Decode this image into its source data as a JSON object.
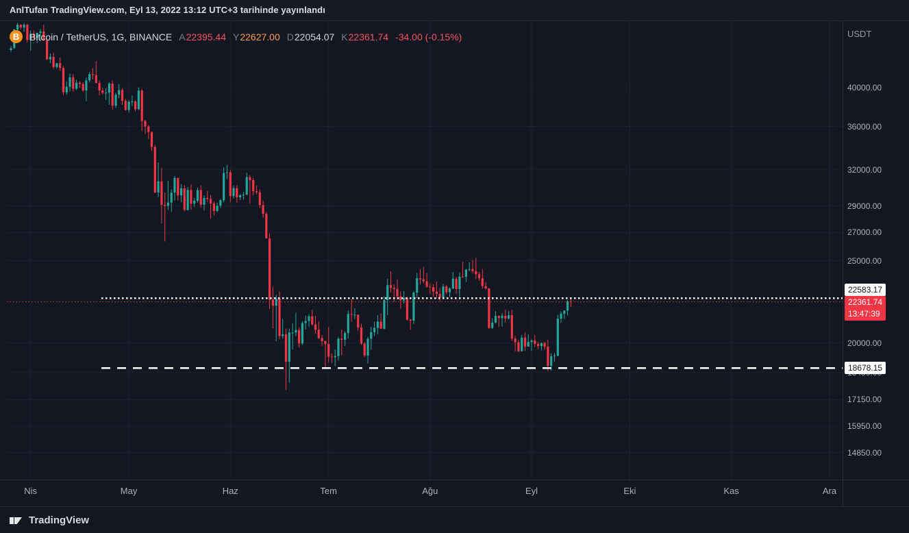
{
  "header": {
    "text": "AnlTufan TradingView.com, Eyl 13, 2022 13:12 UTC+3 tarihinde yayınlandı"
  },
  "legend": {
    "symbol": "Bitcoin / TetherUS, 1G, BINANCE",
    "ohlc": [
      {
        "label": "A",
        "value": "22395.44",
        "color": "#f7525f"
      },
      {
        "label": "Y",
        "value": "22627.00",
        "color": "#ff9850"
      },
      {
        "label": "D",
        "value": "22054.07",
        "color": "#d1d4dc"
      },
      {
        "label": "K",
        "value": "22361.74",
        "color": "#f7525f"
      }
    ],
    "change": {
      "text": "-34.00 (-0.15%)",
      "color": "#f7525f"
    }
  },
  "price_axis": {
    "currency": "USDT",
    "ticks": [
      "40000.00",
      "36000.00",
      "32000.00",
      "29000.00",
      "27000.00",
      "25000.00",
      "20000.00",
      "18450.00",
      "17150.00",
      "15950.00",
      "14850.00"
    ]
  },
  "time_axis": {
    "months": [
      {
        "label": "Nis",
        "bar_index": 6
      },
      {
        "label": "May",
        "bar_index": 36
      },
      {
        "label": "Haz",
        "bar_index": 67
      },
      {
        "label": "Tem",
        "bar_index": 97
      },
      {
        "label": "Ağu",
        "bar_index": 128
      },
      {
        "label": "Eyl",
        "bar_index": 159
      },
      {
        "label": "Eki",
        "bar_index": 189
      },
      {
        "label": "Kas",
        "bar_index": 220
      },
      {
        "label": "Ara",
        "bar_index": 250
      }
    ]
  },
  "footer": {
    "brand": "TradingView"
  },
  "chart_data": {
    "type": "candlestick",
    "symbol": "BTCUSDT",
    "exchange": "BINANCE",
    "interval": "1G",
    "scale": "log",
    "price_range": [
      13800,
      48000
    ],
    "start_date": "2022-03-26",
    "end_date": "2022-09-13",
    "up_color": "#26a69a",
    "down_color": "#f23645",
    "levels": [
      {
        "price": 22583.17,
        "label": "22583.17",
        "style": "white-box",
        "line": "dotted",
        "color": "#ffffff"
      },
      {
        "price": 22361.74,
        "label": "22361.74",
        "style": "red-box",
        "line": "price-dotted",
        "color": "#f23645",
        "countdown": "13:47:39"
      },
      {
        "price": 18678.15,
        "label": "18678.15",
        "style": "white-box",
        "line": "dashed",
        "color": "#ffffff"
      }
    ],
    "candles": [
      [
        44310,
        44800,
        44080,
        44540
      ],
      [
        44540,
        46950,
        44440,
        46850
      ],
      [
        46850,
        47700,
        46660,
        47470
      ],
      [
        47470,
        47500,
        46850,
        47100
      ],
      [
        47100,
        47680,
        46550,
        47460
      ],
      [
        47460,
        47600,
        45200,
        45540
      ],
      [
        45540,
        46720,
        44220,
        46300
      ],
      [
        46300,
        46740,
        45620,
        45800
      ],
      [
        45800,
        46460,
        45150,
        46400
      ],
      [
        46400,
        46890,
        45390,
        46600
      ],
      [
        46600,
        47450,
        45400,
        45500
      ],
      [
        45500,
        45510,
        43120,
        43200
      ],
      [
        43200,
        43900,
        42730,
        43500
      ],
      [
        43500,
        43970,
        42110,
        42300
      ],
      [
        42300,
        42800,
        42120,
        42750
      ],
      [
        42750,
        43420,
        41870,
        42200
      ],
      [
        42200,
        42420,
        39200,
        39500
      ],
      [
        39500,
        40700,
        39250,
        40100
      ],
      [
        40100,
        41560,
        39590,
        41150
      ],
      [
        41150,
        41500,
        39570,
        39900
      ],
      [
        39900,
        40870,
        39770,
        40550
      ],
      [
        40550,
        40700,
        40010,
        40400
      ],
      [
        40400,
        40600,
        39550,
        39700
      ],
      [
        39700,
        41120,
        38550,
        40800
      ],
      [
        40800,
        41760,
        40570,
        41500
      ],
      [
        41500,
        42200,
        40900,
        41400
      ],
      [
        41400,
        42980,
        40800,
        40500
      ],
      [
        40500,
        40800,
        39200,
        39700
      ],
      [
        39700,
        39980,
        39280,
        39450
      ],
      [
        39450,
        39940,
        38700,
        39460
      ],
      [
        39460,
        40600,
        38200,
        40450
      ],
      [
        40450,
        40800,
        37700,
        38100
      ],
      [
        38100,
        39450,
        37880,
        39250
      ],
      [
        39250,
        40400,
        38880,
        39750
      ],
      [
        39750,
        39920,
        38180,
        38600
      ],
      [
        38600,
        38790,
        37580,
        37650
      ],
      [
        37650,
        38670,
        37400,
        38500
      ],
      [
        38500,
        39170,
        38050,
        38530
      ],
      [
        38530,
        38640,
        37500,
        37730
      ],
      [
        37730,
        40020,
        37650,
        39690
      ],
      [
        39690,
        39840,
        35550,
        36550
      ],
      [
        36550,
        36650,
        35250,
        36000
      ],
      [
        36000,
        36130,
        34780,
        35470
      ],
      [
        35470,
        35510,
        33700,
        34050
      ],
      [
        34050,
        34240,
        30030,
        30100
      ],
      [
        30100,
        32650,
        29730,
        31020
      ],
      [
        31020,
        32160,
        27670,
        29100
      ],
      [
        29100,
        30100,
        26350,
        29020
      ],
      [
        29020,
        31080,
        28700,
        29280
      ],
      [
        29280,
        30340,
        28550,
        30080
      ],
      [
        30080,
        31460,
        29450,
        31300
      ],
      [
        31300,
        31330,
        29450,
        29850
      ],
      [
        29850,
        30790,
        29300,
        30440
      ],
      [
        30440,
        30710,
        28600,
        28700
      ],
      [
        28700,
        30550,
        28650,
        30300
      ],
      [
        30300,
        30780,
        28720,
        29200
      ],
      [
        29200,
        29650,
        28940,
        29430
      ],
      [
        29430,
        30490,
        29280,
        30290
      ],
      [
        30290,
        30680,
        28880,
        29110
      ],
      [
        29110,
        29870,
        28660,
        29650
      ],
      [
        29650,
        30230,
        29310,
        29570
      ],
      [
        29570,
        29890,
        28020,
        29200
      ],
      [
        29200,
        29380,
        28270,
        28620
      ],
      [
        28620,
        29270,
        28550,
        29030
      ],
      [
        29030,
        29560,
        28840,
        29470
      ],
      [
        29470,
        32220,
        29300,
        31730
      ],
      [
        31730,
        32400,
        31210,
        31790
      ],
      [
        31790,
        31980,
        29300,
        29800
      ],
      [
        29800,
        30670,
        29590,
        30450
      ],
      [
        30450,
        30690,
        29280,
        29700
      ],
      [
        29700,
        29960,
        29480,
        29860
      ],
      [
        29860,
        30170,
        29520,
        29910
      ],
      [
        29910,
        31740,
        29890,
        31370
      ],
      [
        31370,
        31560,
        29220,
        31120
      ],
      [
        31120,
        31310,
        29860,
        30200
      ],
      [
        30200,
        30680,
        29940,
        30110
      ],
      [
        30110,
        30340,
        28860,
        29080
      ],
      [
        29080,
        29430,
        28100,
        28400
      ],
      [
        28400,
        28540,
        26590,
        26570
      ],
      [
        26570,
        26900,
        21930,
        22490
      ],
      [
        22490,
        23300,
        20820,
        22130
      ],
      [
        22130,
        22790,
        20080,
        22570
      ],
      [
        22570,
        23000,
        20200,
        20380
      ],
      [
        20380,
        21350,
        20250,
        20470
      ],
      [
        20470,
        20800,
        17600,
        19010
      ],
      [
        19010,
        20790,
        17960,
        20570
      ],
      [
        20570,
        21080,
        19640,
        20570
      ],
      [
        20570,
        21700,
        20370,
        20710
      ],
      [
        20710,
        20870,
        19750,
        19970
      ],
      [
        19970,
        21220,
        19890,
        21110
      ],
      [
        21110,
        21540,
        20740,
        21230
      ],
      [
        21230,
        21620,
        20890,
        21500
      ],
      [
        21500,
        21880,
        20970,
        21030
      ],
      [
        21030,
        21520,
        20510,
        20730
      ],
      [
        20730,
        21200,
        20210,
        20260
      ],
      [
        20260,
        20430,
        19850,
        20100
      ],
      [
        20100,
        20130,
        18630,
        19940
      ],
      [
        19940,
        20880,
        18980,
        19270
      ],
      [
        19270,
        19450,
        18940,
        19240
      ],
      [
        19240,
        19650,
        18780,
        19300
      ],
      [
        19300,
        20320,
        19060,
        20230
      ],
      [
        20230,
        20730,
        19320,
        20170
      ],
      [
        20170,
        20650,
        19830,
        20550
      ],
      [
        20550,
        21850,
        20250,
        21630
      ],
      [
        21630,
        22530,
        21190,
        21590
      ],
      [
        21590,
        21970,
        21330,
        21590
      ],
      [
        21590,
        21600,
        20660,
        20860
      ],
      [
        20860,
        21070,
        19890,
        19960
      ],
      [
        19960,
        20050,
        19250,
        19330
      ],
      [
        19330,
        20340,
        18910,
        20230
      ],
      [
        20230,
        20900,
        19630,
        20590
      ],
      [
        20590,
        21190,
        20380,
        20840
      ],
      [
        20840,
        21580,
        20470,
        21190
      ],
      [
        21190,
        21670,
        20770,
        20790
      ],
      [
        20790,
        22700,
        20760,
        22470
      ],
      [
        22470,
        23800,
        21570,
        23400
      ],
      [
        23400,
        24280,
        22920,
        23230
      ],
      [
        23230,
        23440,
        22350,
        23160
      ],
      [
        23160,
        23750,
        22500,
        22690
      ],
      [
        22690,
        23010,
        21940,
        22450
      ],
      [
        22450,
        23020,
        22270,
        22600
      ],
      [
        22600,
        22670,
        21250,
        21310
      ],
      [
        21310,
        21340,
        20730,
        21250
      ],
      [
        21250,
        23010,
        21060,
        22930
      ],
      [
        22930,
        24190,
        22600,
        23840
      ],
      [
        23840,
        24440,
        23440,
        23770
      ],
      [
        23770,
        24600,
        23510,
        23640
      ],
      [
        23640,
        24190,
        23230,
        23300
      ],
      [
        23300,
        23510,
        22840,
        23270
      ],
      [
        23270,
        23460,
        22680,
        22980
      ],
      [
        22980,
        23640,
        22560,
        22850
      ],
      [
        22850,
        23220,
        22400,
        22620
      ],
      [
        22620,
        23470,
        22580,
        23310
      ],
      [
        23310,
        23400,
        22830,
        22950
      ],
      [
        22950,
        23270,
        22660,
        23180
      ],
      [
        23180,
        24250,
        23150,
        23810
      ],
      [
        23810,
        23930,
        22860,
        23150
      ],
      [
        23150,
        24230,
        22670,
        23950
      ],
      [
        23950,
        24920,
        23870,
        23940
      ],
      [
        23940,
        24450,
        23600,
        24400
      ],
      [
        24400,
        24890,
        24300,
        24440
      ],
      [
        24440,
        25050,
        24150,
        24310
      ],
      [
        24310,
        25210,
        23780,
        24100
      ],
      [
        24100,
        24250,
        23690,
        23850
      ],
      [
        23850,
        24450,
        23180,
        23340
      ],
      [
        23340,
        23600,
        23110,
        23190
      ],
      [
        23190,
        23210,
        20780,
        20830
      ],
      [
        20830,
        21380,
        20770,
        21140
      ],
      [
        21140,
        21800,
        21080,
        21520
      ],
      [
        21520,
        21540,
        20890,
        21400
      ],
      [
        21400,
        21680,
        20900,
        21530
      ],
      [
        21530,
        21900,
        21150,
        21370
      ],
      [
        21370,
        21820,
        21310,
        21560
      ],
      [
        21560,
        21880,
        20110,
        20240
      ],
      [
        20240,
        20390,
        19540,
        20040
      ],
      [
        20040,
        20170,
        19520,
        19550
      ],
      [
        19550,
        20430,
        19550,
        20290
      ],
      [
        20290,
        20580,
        19570,
        19800
      ],
      [
        19800,
        20480,
        19800,
        20050
      ],
      [
        20050,
        20200,
        19560,
        20130
      ],
      [
        20130,
        20440,
        19760,
        19950
      ],
      [
        19950,
        20060,
        19650,
        19830
      ],
      [
        19830,
        20030,
        19590,
        19990
      ],
      [
        19990,
        20060,
        19630,
        19790
      ],
      [
        19790,
        20180,
        18510,
        18790
      ],
      [
        18790,
        19460,
        18540,
        19290
      ],
      [
        19290,
        19450,
        19010,
        19320
      ],
      [
        19320,
        21590,
        19290,
        21360
      ],
      [
        21360,
        21790,
        21120,
        21650
      ],
      [
        21650,
        21850,
        21350,
        21830
      ],
      [
        21830,
        22480,
        21540,
        22390
      ],
      [
        22395.44,
        22627.0,
        22054.07,
        22361.74
      ]
    ]
  }
}
